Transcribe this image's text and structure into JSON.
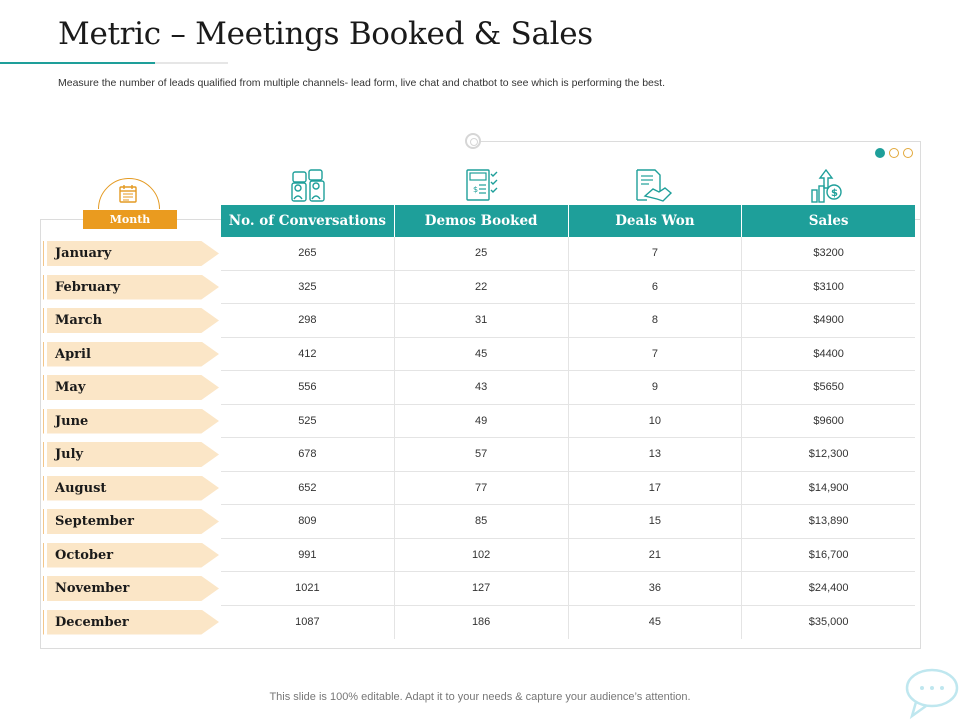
{
  "header": {
    "title": "Metric – Meetings Booked & Sales",
    "subtitle": "Measure the number of leads qualified from multiple channels- lead form, live chat and chatbot to see which is performing the best."
  },
  "month_header": "Month",
  "icons": {
    "month": "calendar-icon",
    "conversations": "chat-people-icon",
    "demos": "document-checklist-icon",
    "deals": "handshake-contract-icon",
    "sales": "dollar-growth-icon",
    "footer": "chat-bubble-icon"
  },
  "colors": {
    "accent": "#1e9f9a",
    "orange": "#ea9b1f",
    "chip": "#fbe6c7"
  },
  "table": {
    "headers": [
      "No. of Conversations",
      "Demos Booked",
      "Deals Won",
      "Sales"
    ],
    "rows": [
      {
        "month": "January",
        "cells": [
          "265",
          "25",
          "7",
          "$3200"
        ]
      },
      {
        "month": "February",
        "cells": [
          "325",
          "22",
          "6",
          "$3100"
        ]
      },
      {
        "month": "March",
        "cells": [
          "298",
          "31",
          "8",
          "$4900"
        ]
      },
      {
        "month": "April",
        "cells": [
          "412",
          "45",
          "7",
          "$4400"
        ]
      },
      {
        "month": "May",
        "cells": [
          "556",
          "43",
          "9",
          "$5650"
        ]
      },
      {
        "month": "June",
        "cells": [
          "525",
          "49",
          "10",
          "$9600"
        ]
      },
      {
        "month": "July",
        "cells": [
          "678",
          "57",
          "13",
          "$12,300"
        ]
      },
      {
        "month": "August",
        "cells": [
          "652",
          "77",
          "17",
          "$14,900"
        ]
      },
      {
        "month": "September",
        "cells": [
          "809",
          "85",
          "15",
          "$13,890"
        ]
      },
      {
        "month": "October",
        "cells": [
          "991",
          "102",
          "21",
          "$16,700"
        ]
      },
      {
        "month": "November",
        "cells": [
          "1021",
          "127",
          "36",
          "$24,400"
        ]
      },
      {
        "month": "December",
        "cells": [
          "1087",
          "186",
          "45",
          "$35,000"
        ]
      }
    ]
  },
  "footer": "This slide is 100% editable. Adapt it to your needs & capture your audience’s attention."
}
